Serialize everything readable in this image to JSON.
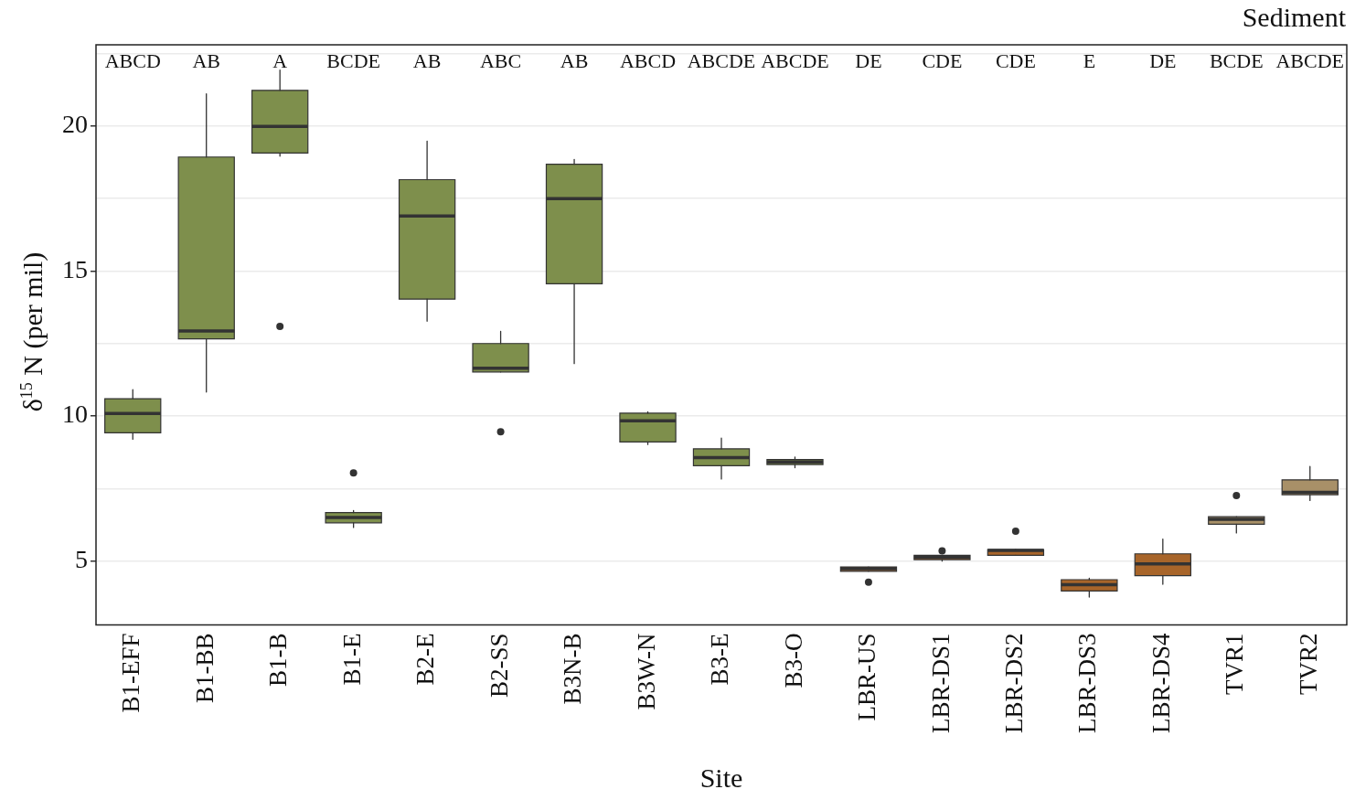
{
  "chart_data": {
    "type": "box",
    "title": "Sediment",
    "xlabel": "Site",
    "ylabel": "δ$^{15}$ N (per mil)",
    "categories": [
      "B1-EFF",
      "B1-BB",
      "B1-B",
      "B1-E",
      "B2-E",
      "B2-SS",
      "B3N-B",
      "B3W-N",
      "B3-E",
      "B3-O",
      "LBR-US",
      "LBR-DS1",
      "LBR-DS2",
      "LBR-DS3",
      "LBR-DS4",
      "TVR1",
      "TVR2"
    ],
    "colors": [
      "#7e8f4c",
      "#7e8f4c",
      "#7e8f4c",
      "#7e8f4c",
      "#7e8f4c",
      "#7e8f4c",
      "#7e8f4c",
      "#7e8f4c",
      "#7e8f4c",
      "#7e8f4c",
      "#a8652a",
      "#a8652a",
      "#a8652a",
      "#a8652a",
      "#a8652a",
      "#a89068",
      "#a89068"
    ],
    "boxes": [
      {
        "low": 9.2,
        "q1": 9.42,
        "median": 10.09,
        "q3": 10.6,
        "high": 10.91
      },
      {
        "low": 10.83,
        "q1": 12.66,
        "median": 12.93,
        "q3": 18.93,
        "high": 21.11
      },
      {
        "low": 18.96,
        "q1": 19.07,
        "median": 19.99,
        "q3": 21.23,
        "high": 21.93,
        "outliers": [
          13.09
        ]
      },
      {
        "low": 6.16,
        "q1": 6.32,
        "median": 6.5,
        "q3": 6.67,
        "high": 6.74,
        "outliers": [
          8.04
        ]
      },
      {
        "low": 13.27,
        "q1": 14.03,
        "median": 16.9,
        "q3": 18.15,
        "high": 19.48
      },
      {
        "low": 11.52,
        "q1": 11.52,
        "median": 11.65,
        "q3": 12.5,
        "high": 12.92,
        "outliers": [
          9.46
        ]
      },
      {
        "low": 11.81,
        "q1": 14.56,
        "median": 17.5,
        "q3": 18.68,
        "high": 18.85
      },
      {
        "low": 9.02,
        "q1": 9.11,
        "median": 9.84,
        "q3": 10.1,
        "high": 10.15
      },
      {
        "low": 7.83,
        "q1": 8.29,
        "median": 8.57,
        "q3": 8.87,
        "high": 9.24
      },
      {
        "low": 8.22,
        "q1": 8.33,
        "median": 8.42,
        "q3": 8.5,
        "high": 8.59
      },
      {
        "low": 4.65,
        "q1": 4.65,
        "median": 4.74,
        "q3": 4.8,
        "high": 4.8,
        "outliers": [
          4.27
        ]
      },
      {
        "low": 5.0,
        "q1": 5.05,
        "median": 5.13,
        "q3": 5.2,
        "high": 5.2,
        "outliers": [
          5.35
        ]
      },
      {
        "low": 5.2,
        "q1": 5.2,
        "median": 5.37,
        "q3": 5.4,
        "high": 5.4,
        "outliers": [
          6.03
        ]
      },
      {
        "low": 3.76,
        "q1": 3.97,
        "median": 4.19,
        "q3": 4.36,
        "high": 4.41
      },
      {
        "low": 4.2,
        "q1": 4.5,
        "median": 4.9,
        "q3": 5.25,
        "high": 5.76
      },
      {
        "low": 5.97,
        "q1": 6.27,
        "median": 6.44,
        "q3": 6.53,
        "high": 6.53,
        "outliers": [
          7.26
        ]
      },
      {
        "low": 7.09,
        "q1": 7.29,
        "median": 7.37,
        "q3": 7.8,
        "high": 8.26
      }
    ],
    "ylim": [
      2.8,
      22.8
    ],
    "yticks": [
      5,
      10,
      15,
      20,
      {
        "value": 7.5,
        "label": null
      },
      {
        "value": 12.5,
        "label": null
      },
      {
        "value": 17.5,
        "label": null
      },
      {
        "value": 22.5,
        "label": null
      }
    ],
    "grid": "y",
    "legend": false,
    "annotations": [
      "ABCD",
      "AB",
      "A",
      "BCDE",
      "AB",
      "ABC",
      "AB",
      "ABCD",
      "ABCDE",
      "ABCDE",
      "DE",
      "CDE",
      "CDE",
      "E",
      "DE",
      "BCDE",
      "ABCDE"
    ]
  }
}
